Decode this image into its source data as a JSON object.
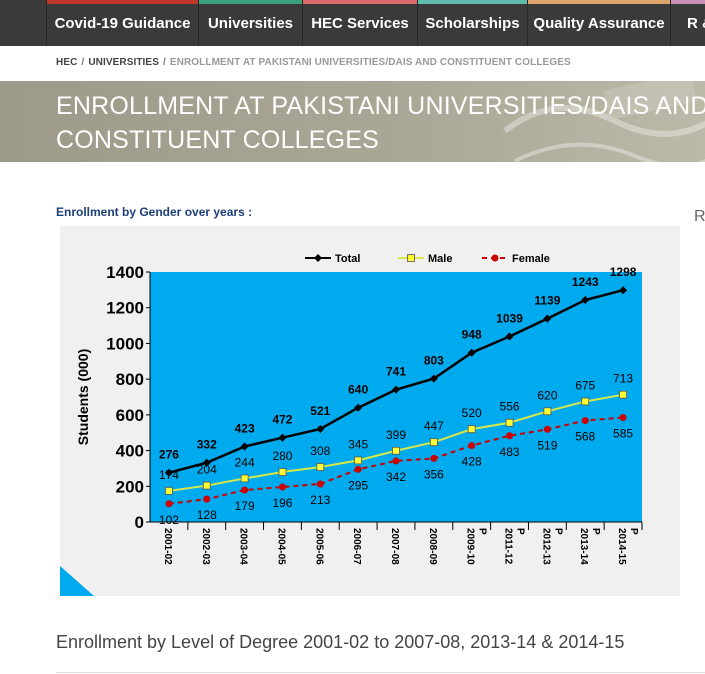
{
  "nav": {
    "items": [
      {
        "label": "Covid-19 Guidance",
        "color": "#c0392b"
      },
      {
        "label": "Universities",
        "color": "#3aa17e"
      },
      {
        "label": "HEC Services",
        "color": "#d96b6b"
      },
      {
        "label": "Scholarships",
        "color": "#5fbcad"
      },
      {
        "label": "Quality Assurance",
        "color": "#e0a56e"
      },
      {
        "label": "R &",
        "color": "#c98fb6"
      }
    ]
  },
  "breadcrumb": {
    "items": [
      "HEC",
      "UNIVERSITIES"
    ],
    "separator": "/",
    "current": "ENROLLMENT AT PAKISTANI UNIVERSITIES/DAIS AND CONSTITUENT COLLEGES"
  },
  "page": {
    "title": "ENROLLMENT AT PAKISTANI UNIVERSITIES/DAIS AND CONSTITUENT COLLEGES",
    "section_label": "Enrollment by Gender over years :",
    "side_text": "R",
    "bottom_heading": "Enrollment by Level of Degree 2001-02 to 2007-08, 2013-14 & 2014-15"
  },
  "colors": {
    "plot_bg": "#00aaee",
    "frame_bg": "#f0f0f0",
    "total": "#000000",
    "male": "#d8e84a",
    "female": "#cc0000"
  },
  "chart_data": {
    "type": "line",
    "title": "",
    "xlabel": "",
    "ylabel": "Students (000)",
    "ylim": [
      0,
      1400
    ],
    "yticks": [
      0,
      200,
      400,
      600,
      800,
      1000,
      1200,
      1400
    ],
    "legend_position": "top",
    "grid": false,
    "categories": [
      "2001-02",
      "2002-03",
      "2003-04",
      "2004-05",
      "2005-06",
      "2006-07",
      "2007-08",
      "2008-09",
      "2009-10 P",
      "2011-12 P",
      "2012-13 P",
      "2013-14 P",
      "2014-15 P"
    ],
    "series": [
      {
        "name": "Total",
        "values": [
          276,
          332,
          423,
          472,
          521,
          640,
          741,
          803,
          948,
          1039,
          1139,
          1243,
          1298
        ]
      },
      {
        "name": "Male",
        "values": [
          174,
          204,
          244,
          280,
          308,
          345,
          399,
          447,
          520,
          556,
          620,
          675,
          713
        ]
      },
      {
        "name": "Female",
        "values": [
          102,
          128,
          179,
          196,
          213,
          295,
          342,
          356,
          428,
          483,
          519,
          568,
          585
        ]
      }
    ]
  }
}
